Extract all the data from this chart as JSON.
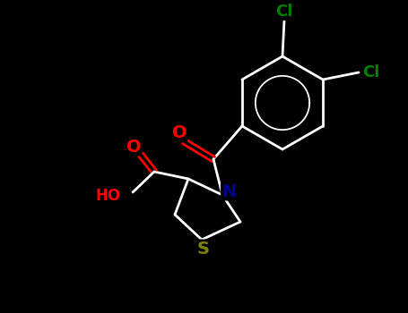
{
  "background_color": "#000000",
  "bond_color": "#ffffff",
  "atom_colors": {
    "O": "#ff0000",
    "N": "#00008b",
    "S": "#808000",
    "Cl": "#008000",
    "C": "#ffffff",
    "H": "#ffffff"
  },
  "figsize": [
    4.55,
    3.5
  ],
  "dpi": 100,
  "bond_lw": 2.0,
  "font_size": 13
}
